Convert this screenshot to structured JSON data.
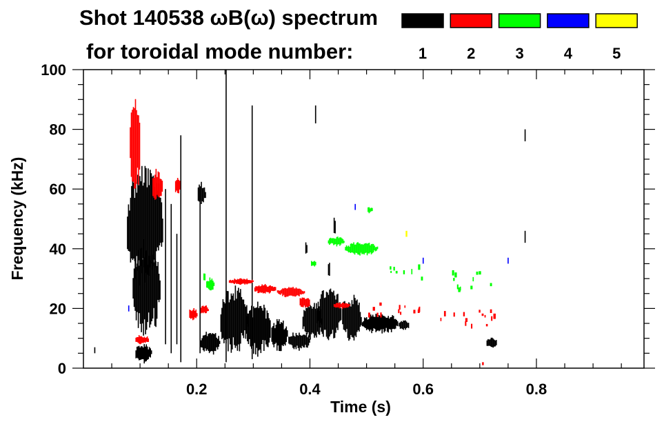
{
  "chart_data": {
    "type": "heatmap",
    "title": "Shot 140538 ωB(ω) spectrum",
    "subtitle": "for toroidal mode number:",
    "xlabel": "Time (s)",
    "ylabel": "Frequency (kHz)",
    "xlim": [
      0,
      0.99
    ],
    "ylim": [
      0,
      100
    ],
    "xticks": [
      0.2,
      0.4,
      0.6,
      0.8
    ],
    "xtick_labels": [
      "0.2",
      "0.4",
      "0.6",
      "0.8"
    ],
    "yticks": [
      0,
      20,
      40,
      60,
      80,
      100
    ],
    "ytick_labels": [
      "0",
      "20",
      "40",
      "60",
      "80",
      "100"
    ],
    "legend": {
      "placement": "top-right",
      "entries": [
        {
          "mode": "1",
          "color": "#000000"
        },
        {
          "mode": "2",
          "color": "#ff0000"
        },
        {
          "mode": "3",
          "color": "#00ff00"
        },
        {
          "mode": "4",
          "color": "#0000ff"
        },
        {
          "mode": "5",
          "color": "#ffff00"
        }
      ]
    },
    "features": [
      {
        "mode": 1,
        "t": [
          0.075,
          0.14
        ],
        "f": [
          30,
          66
        ],
        "kind": "blob"
      },
      {
        "mode": 1,
        "t": [
          0.085,
          0.135
        ],
        "f": [
          12,
          42
        ],
        "kind": "blob"
      },
      {
        "mode": 1,
        "t": [
          0.09,
          0.12
        ],
        "f": [
          2,
          8
        ],
        "kind": "blob"
      },
      {
        "mode": 1,
        "t": [
          0.145,
          0.145
        ],
        "f": [
          8,
          60
        ],
        "kind": "line"
      },
      {
        "mode": 1,
        "t": [
          0.155,
          0.155
        ],
        "f": [
          5,
          55
        ],
        "kind": "line"
      },
      {
        "mode": 1,
        "t": [
          0.165,
          0.165
        ],
        "f": [
          8,
          45
        ],
        "kind": "line"
      },
      {
        "mode": 1,
        "t": [
          0.172,
          0.172
        ],
        "f": [
          2,
          78
        ],
        "kind": "line"
      },
      {
        "mode": 1,
        "t": [
          0.206,
          0.206
        ],
        "f": [
          5,
          60
        ],
        "kind": "line"
      },
      {
        "mode": 1,
        "t": [
          0.252,
          0.252
        ],
        "f": [
          2,
          100
        ],
        "kind": "line"
      },
      {
        "mode": 1,
        "t": [
          0.298,
          0.298
        ],
        "f": [
          3,
          88
        ],
        "kind": "line"
      },
      {
        "mode": 1,
        "t": [
          0.2,
          0.215
        ],
        "f": [
          55,
          62
        ],
        "kind": "blob"
      },
      {
        "mode": 1,
        "t": [
          0.205,
          0.24
        ],
        "f": [
          5,
          12
        ],
        "kind": "blob"
      },
      {
        "mode": 1,
        "t": [
          0.24,
          0.29
        ],
        "f": [
          6,
          27
        ],
        "kind": "blob"
      },
      {
        "mode": 1,
        "t": [
          0.285,
          0.33
        ],
        "f": [
          5,
          22
        ],
        "kind": "blob"
      },
      {
        "mode": 1,
        "t": [
          0.33,
          0.36
        ],
        "f": [
          6,
          16
        ],
        "kind": "blob"
      },
      {
        "mode": 1,
        "t": [
          0.36,
          0.4
        ],
        "f": [
          6,
          12
        ],
        "kind": "blob"
      },
      {
        "mode": 1,
        "t": [
          0.385,
          0.42
        ],
        "f": [
          10,
          22
        ],
        "kind": "blob"
      },
      {
        "mode": 1,
        "t": [
          0.41,
          0.455
        ],
        "f": [
          10,
          26
        ],
        "kind": "blob"
      },
      {
        "mode": 1,
        "t": [
          0.455,
          0.49
        ],
        "f": [
          9,
          24
        ],
        "kind": "blob"
      },
      {
        "mode": 1,
        "t": [
          0.49,
          0.555
        ],
        "f": [
          12,
          18
        ],
        "kind": "blob"
      },
      {
        "mode": 1,
        "t": [
          0.555,
          0.575
        ],
        "f": [
          13,
          16
        ],
        "kind": "blob"
      },
      {
        "mode": 1,
        "t": [
          0.39,
          0.395
        ],
        "f": [
          38,
          42
        ],
        "kind": "blob"
      },
      {
        "mode": 1,
        "t": [
          0.43,
          0.435
        ],
        "f": [
          30,
          36
        ],
        "kind": "blob"
      },
      {
        "mode": 1,
        "t": [
          0.44,
          0.445
        ],
        "f": [
          45,
          50
        ],
        "kind": "blob"
      },
      {
        "mode": 1,
        "t": [
          0.71,
          0.73
        ],
        "f": [
          7,
          10
        ],
        "kind": "blob"
      },
      {
        "mode": 1,
        "t": [
          0.78,
          0.782
        ],
        "f": [
          42,
          46
        ],
        "kind": "line"
      },
      {
        "mode": 1,
        "t": [
          0.78,
          0.782
        ],
        "f": [
          76,
          80
        ],
        "kind": "line"
      },
      {
        "mode": 1,
        "t": [
          0.41,
          0.412
        ],
        "f": [
          82,
          88
        ],
        "kind": "line"
      },
      {
        "mode": 1,
        "t": [
          0.02,
          0.022
        ],
        "f": [
          5,
          7
        ],
        "kind": "line"
      },
      {
        "mode": 2,
        "t": [
          0.08,
          0.1
        ],
        "f": [
          60,
          88
        ],
        "kind": "blob"
      },
      {
        "mode": 2,
        "t": [
          0.12,
          0.14
        ],
        "f": [
          56,
          66
        ],
        "kind": "blob"
      },
      {
        "mode": 2,
        "t": [
          0.16,
          0.17
        ],
        "f": [
          58,
          64
        ],
        "kind": "blob"
      },
      {
        "mode": 2,
        "t": [
          0.09,
          0.115
        ],
        "f": [
          8,
          11
        ],
        "kind": "blob"
      },
      {
        "mode": 2,
        "t": [
          0.185,
          0.2
        ],
        "f": [
          16,
          20
        ],
        "kind": "blob"
      },
      {
        "mode": 2,
        "t": [
          0.205,
          0.22
        ],
        "f": [
          18,
          21
        ],
        "kind": "blob"
      },
      {
        "mode": 2,
        "t": [
          0.255,
          0.3
        ],
        "f": [
          28,
          30
        ],
        "kind": "blob"
      },
      {
        "mode": 2,
        "t": [
          0.3,
          0.34
        ],
        "f": [
          25,
          28
        ],
        "kind": "blob"
      },
      {
        "mode": 2,
        "t": [
          0.34,
          0.39
        ],
        "f": [
          24,
          27
        ],
        "kind": "blob"
      },
      {
        "mode": 2,
        "t": [
          0.38,
          0.4
        ],
        "f": [
          20,
          24
        ],
        "kind": "blob"
      },
      {
        "mode": 2,
        "t": [
          0.44,
          0.47
        ],
        "f": [
          20,
          22
        ],
        "kind": "blob"
      },
      {
        "mode": 2,
        "t": [
          0.5,
          0.6
        ],
        "f": [
          18,
          22
        ],
        "kind": "sparse"
      },
      {
        "mode": 2,
        "t": [
          0.63,
          0.73
        ],
        "f": [
          14,
          20
        ],
        "kind": "sparse"
      },
      {
        "mode": 2,
        "t": [
          0.705,
          0.708
        ],
        "f": [
          1,
          2
        ],
        "kind": "line"
      },
      {
        "mode": 3,
        "t": [
          0.21,
          0.215
        ],
        "f": [
          29,
          32
        ],
        "kind": "blob"
      },
      {
        "mode": 3,
        "t": [
          0.215,
          0.23
        ],
        "f": [
          26,
          30
        ],
        "kind": "blob"
      },
      {
        "mode": 3,
        "t": [
          0.4,
          0.41
        ],
        "f": [
          34,
          36
        ],
        "kind": "blob"
      },
      {
        "mode": 3,
        "t": [
          0.43,
          0.46
        ],
        "f": [
          41,
          44
        ],
        "kind": "blob"
      },
      {
        "mode": 3,
        "t": [
          0.46,
          0.52
        ],
        "f": [
          38,
          42
        ],
        "kind": "blob"
      },
      {
        "mode": 3,
        "t": [
          0.5,
          0.51
        ],
        "f": [
          52,
          54
        ],
        "kind": "blob"
      },
      {
        "mode": 3,
        "t": [
          0.54,
          0.6
        ],
        "f": [
          30,
          35
        ],
        "kind": "sparse"
      },
      {
        "mode": 3,
        "t": [
          0.64,
          0.72
        ],
        "f": [
          27,
          33
        ],
        "kind": "sparse"
      },
      {
        "mode": 4,
        "t": [
          0.08,
          0.082
        ],
        "f": [
          19,
          21
        ],
        "kind": "line"
      },
      {
        "mode": 4,
        "t": [
          0.48,
          0.482
        ],
        "f": [
          53,
          55
        ],
        "kind": "line"
      },
      {
        "mode": 4,
        "t": [
          0.6,
          0.602
        ],
        "f": [
          35,
          37
        ],
        "kind": "line"
      },
      {
        "mode": 4,
        "t": [
          0.75,
          0.752
        ],
        "f": [
          35,
          37
        ],
        "kind": "line"
      },
      {
        "mode": 5,
        "t": [
          0.57,
          0.573
        ],
        "f": [
          44,
          46
        ],
        "kind": "line"
      }
    ]
  }
}
